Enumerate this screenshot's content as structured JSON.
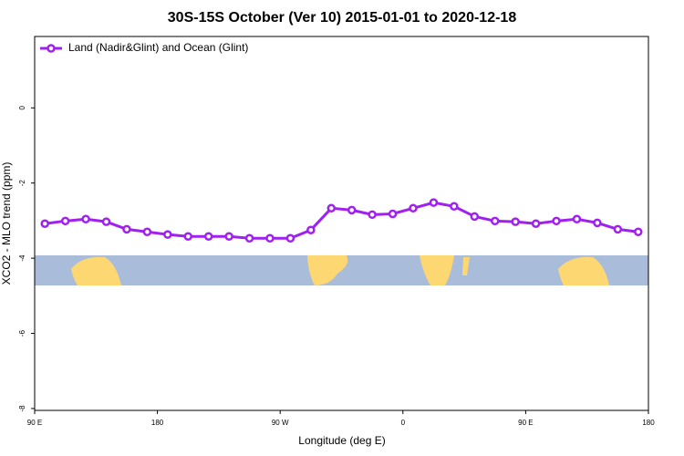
{
  "chart_data": {
    "type": "line",
    "title": "30S-15S October (Ver 10)   2015-01-01 to 2020-12-18",
    "x_label": "Longitude (deg E)",
    "y_label": "XCO2 - MLO trend (ppm)",
    "x": [
      97.5,
      112.5,
      127.5,
      142.5,
      157.5,
      172.5,
      187.5,
      202.5,
      217.5,
      232.5,
      247.5,
      262.5,
      277.5,
      292.5,
      307.5,
      322.5,
      337.5,
      352.5,
      367.5,
      382.5,
      397.5,
      412.5,
      427.5,
      442.5,
      457.5,
      472.5,
      487.5,
      502.5,
      517.5,
      532.5
    ],
    "series": [
      {
        "name": "Land (Nadir&Glint) and Ocean (Glint)",
        "color": "#a020f0",
        "values": [
          -3.08,
          -3.01,
          -2.96,
          -3.03,
          -3.23,
          -3.3,
          -3.37,
          -3.42,
          -3.42,
          -3.42,
          -3.47,
          -3.47,
          -3.47,
          -3.25,
          -2.67,
          -2.72,
          -2.84,
          -2.82,
          -2.67,
          -2.52,
          -2.62,
          -2.89,
          -3.01,
          -3.03,
          -3.08,
          -3.01,
          -2.96,
          -3.06,
          -3.23,
          -3.3
        ]
      }
    ],
    "xlim": [
      90,
      540
    ],
    "xticks": [
      {
        "value": 90,
        "label": "90 E"
      },
      180,
      {
        "value": 270,
        "label": "90 W"
      },
      {
        "value": 360,
        "label": "0"
      },
      {
        "value": 450,
        "label": "90 E"
      },
      {
        "value": 540,
        "label": "180"
      }
    ],
    "ylim": [
      -8.05,
      1.9
    ],
    "yticks": [
      0,
      -2,
      -4,
      -6,
      -8
    ],
    "legend": "top-left"
  }
}
